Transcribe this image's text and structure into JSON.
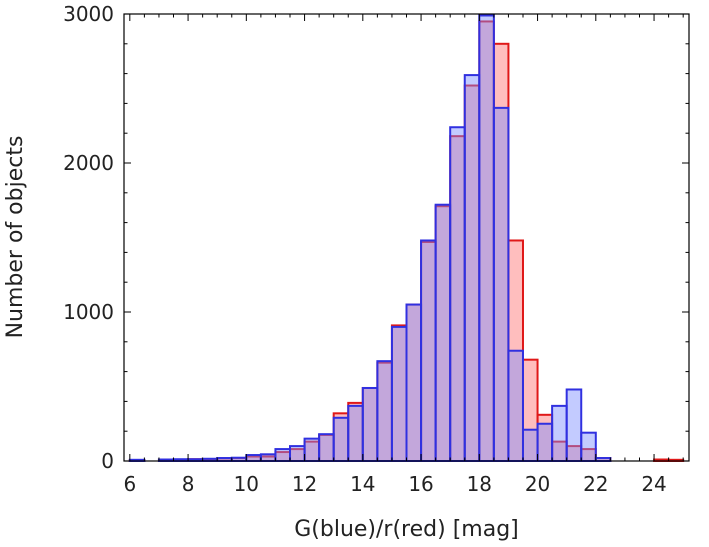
{
  "chart_data": {
    "type": "bar",
    "subtype": "overlaid-histogram",
    "title": "",
    "xlabel": "G(blue)/r(red) [mag]",
    "ylabel": "Number of objects",
    "xlim": [
      5.8,
      25.2
    ],
    "ylim": [
      0,
      3000
    ],
    "bin_width": 0.5,
    "x_ticks": [
      6,
      8,
      10,
      12,
      14,
      16,
      18,
      20,
      22,
      24
    ],
    "y_ticks": [
      0,
      1000,
      2000,
      3000
    ],
    "grid": false,
    "series": [
      {
        "name": "r (red)",
        "color": "#ff6e6e",
        "edge_color": "#e01818",
        "bin_starts": [
          6.0,
          7.0,
          7.5,
          8.0,
          8.5,
          9.0,
          9.5,
          10.0,
          10.5,
          11.0,
          11.5,
          12.0,
          12.5,
          13.0,
          13.5,
          14.0,
          14.5,
          15.0,
          15.5,
          16.0,
          16.5,
          17.0,
          17.5,
          18.0,
          18.5,
          19.0,
          19.5,
          20.0,
          20.5,
          21.0,
          21.5,
          22.0,
          24.0,
          24.5
        ],
        "values": [
          5,
          10,
          10,
          12,
          12,
          18,
          20,
          30,
          30,
          60,
          80,
          130,
          175,
          320,
          390,
          490,
          660,
          910,
          1050,
          1470,
          1710,
          2180,
          2520,
          2950,
          2800,
          1480,
          680,
          310,
          130,
          100,
          80,
          20,
          10,
          8
        ]
      },
      {
        "name": "G (blue)",
        "color": "#7a8cff",
        "edge_color": "#3030e0",
        "bin_starts": [
          6.0,
          7.0,
          7.5,
          8.0,
          8.5,
          9.0,
          9.5,
          10.0,
          10.5,
          11.0,
          11.5,
          12.0,
          12.5,
          13.0,
          13.5,
          14.0,
          14.5,
          15.0,
          15.5,
          16.0,
          16.5,
          17.0,
          17.5,
          18.0,
          18.5,
          19.0,
          19.5,
          20.0,
          20.5,
          21.0,
          21.5,
          22.0
        ],
        "values": [
          8,
          10,
          12,
          12,
          15,
          20,
          22,
          40,
          45,
          80,
          100,
          150,
          180,
          290,
          370,
          490,
          670,
          900,
          1050,
          1480,
          1720,
          2240,
          2590,
          2990,
          2370,
          740,
          210,
          250,
          370,
          480,
          190,
          20
        ]
      }
    ]
  }
}
